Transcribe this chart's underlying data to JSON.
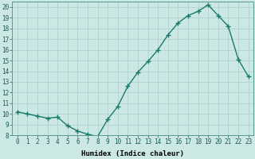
{
  "x": [
    0,
    1,
    2,
    3,
    4,
    5,
    6,
    7,
    8,
    9,
    10,
    11,
    12,
    13,
    14,
    15,
    16,
    17,
    18,
    19,
    20,
    21,
    22,
    23
  ],
  "y": [
    10.2,
    10.0,
    9.8,
    9.6,
    9.7,
    8.9,
    8.4,
    8.1,
    7.9,
    9.5,
    10.7,
    12.6,
    13.9,
    14.9,
    16.0,
    17.4,
    18.5,
    19.2,
    19.6,
    20.2,
    19.2,
    18.2,
    15.1,
    13.5
  ],
  "line_color": "#1a7a6e",
  "marker": "+",
  "marker_size": 4,
  "marker_linewidth": 1.0,
  "bg_color": "#cce8e4",
  "grid_color": "#aacfcb",
  "xlabel": "Humidex (Indice chaleur)",
  "ylim": [
    8,
    20.5
  ],
  "xlim": [
    -0.5,
    23.5
  ],
  "yticks": [
    8,
    9,
    10,
    11,
    12,
    13,
    14,
    15,
    16,
    17,
    18,
    19,
    20
  ],
  "xticks": [
    0,
    1,
    2,
    3,
    4,
    5,
    6,
    7,
    8,
    9,
    10,
    11,
    12,
    13,
    14,
    15,
    16,
    17,
    18,
    19,
    20,
    21,
    22,
    23
  ],
  "tick_fontsize": 5.5,
  "label_fontsize": 6.5,
  "linewidth": 1.0
}
